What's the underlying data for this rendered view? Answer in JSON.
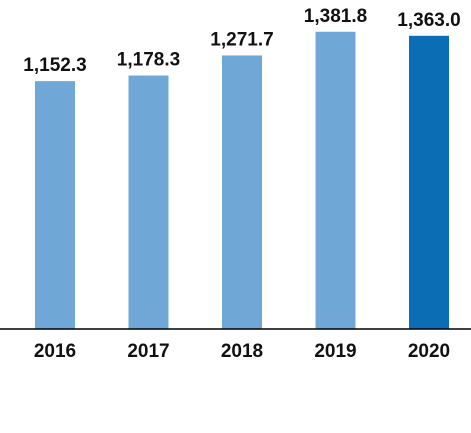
{
  "chart_data": {
    "type": "bar",
    "title": "",
    "xlabel": "",
    "ylabel": "",
    "categories": [
      "2016",
      "2017",
      "2018",
      "2019",
      "2020"
    ],
    "values": [
      1152.3,
      1178.3,
      1271.7,
      1381.8,
      1363.0
    ],
    "value_labels": [
      "1,152.3",
      "1,178.3",
      "1,271.7",
      "1,381.8",
      "1,363.0"
    ],
    "bar_colors": [
      "#6fa8d6",
      "#6fa8d6",
      "#6fa8d6",
      "#6fa8d6",
      "#0b6db3"
    ],
    "ylim": [
      0,
      1390
    ],
    "grid": false,
    "legend": "none",
    "axis_color": "#000000"
  }
}
